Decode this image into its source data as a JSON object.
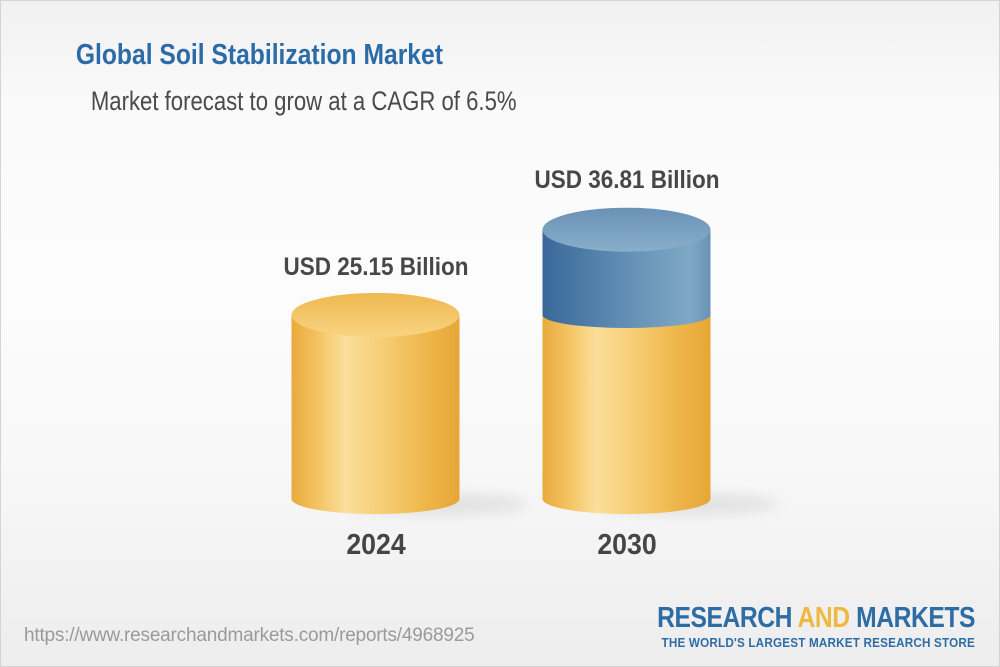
{
  "header": {
    "title": "Global Soil Stabilization Market",
    "subtitle": "Market forecast to grow at a CAGR of 6.5%"
  },
  "chart_data": {
    "type": "bar",
    "variant": "3d-cylinder",
    "title": "Global Soil Stabilization Market",
    "subtitle": "Market forecast to grow at a CAGR of 6.5%",
    "cagr_pct": 6.5,
    "unit": "USD Billion",
    "categories": [
      "2024",
      "2030"
    ],
    "values": [
      25.15,
      36.81
    ],
    "value_labels": [
      "USD 25.15 Billion",
      "USD 36.81 Billion"
    ],
    "ylim": [
      0,
      40
    ],
    "grid": false,
    "legend": "none",
    "stacked_segments": [
      [
        {
          "value": 25.15,
          "color_key": "gold"
        }
      ],
      [
        {
          "value": 25.15,
          "color_key": "gold"
        },
        {
          "value": 11.66,
          "color_key": "blue"
        }
      ]
    ]
  },
  "colors": {
    "title_blue": "#2B6CA8",
    "label_gray": "#474747",
    "gold_base": "#F2BE55",
    "gold_highlight": "#FBDC96",
    "blue_base": "#4F7EA9",
    "blue_light": "#7EA6C5",
    "logo_blue": "#2E6DA4",
    "logo_gold": "#EFB83F",
    "url_gray": "#9A9A9A"
  },
  "footer": {
    "url": "https://www.researchandmarkets.com/reports/4968925",
    "logo": {
      "part1": "RESEARCH",
      "part2": "AND",
      "part3": "MARKETS",
      "tagline": "THE WORLD'S LARGEST MARKET RESEARCH STORE"
    }
  }
}
